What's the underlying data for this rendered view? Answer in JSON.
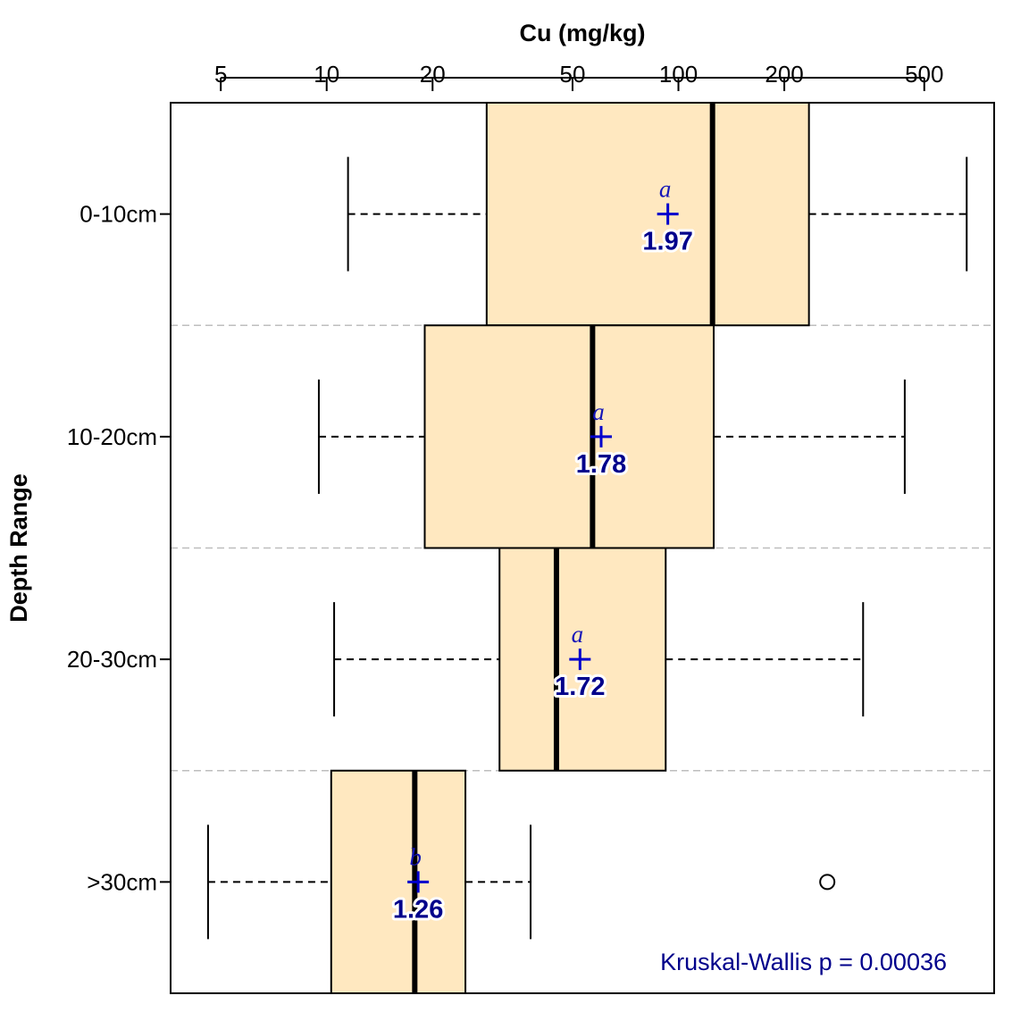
{
  "chart_data": {
    "type": "boxplot",
    "orientation": "horizontal",
    "title": "",
    "xlabel": "Cu (mg/kg)",
    "ylabel": "Depth Range",
    "x_scale": "log",
    "x_axis_position": "top",
    "xlim": [
      3.6,
      790
    ],
    "x_ticks": [
      5,
      10,
      20,
      50,
      100,
      200,
      500
    ],
    "x_tick_labels": [
      "5",
      "10",
      "20",
      "50",
      "100",
      "200",
      "500"
    ],
    "categories": [
      "0-10cm",
      "10-20cm",
      "20-30cm",
      ">30cm"
    ],
    "boxes": [
      {
        "label": "0-10cm",
        "whisker_low": 11.5,
        "q1": 28.5,
        "median": 125,
        "q3": 235,
        "whisker_high": 660,
        "outliers": [],
        "mean": 93.3,
        "mean_label": "1.97",
        "letter": "a"
      },
      {
        "label": "10-20cm",
        "whisker_low": 9.5,
        "q1": 19,
        "median": 57,
        "q3": 126,
        "whisker_high": 440,
        "outliers": [],
        "mean": 60.3,
        "mean_label": "1.78",
        "letter": "a"
      },
      {
        "label": "20-30cm",
        "whisker_low": 10.5,
        "q1": 31,
        "median": 45,
        "q3": 92,
        "whisker_high": 335,
        "outliers": [],
        "mean": 52.5,
        "mean_label": "1.72",
        "letter": "a"
      },
      {
        "label": ">30cm",
        "whisker_low": 4.6,
        "q1": 10.3,
        "median": 17.8,
        "q3": 24.8,
        "whisker_high": 38,
        "outliers": [
          265
        ],
        "mean": 18.2,
        "mean_label": "1.26",
        "letter": "b"
      }
    ],
    "box_color": "#ffe8c0",
    "median_color": "#000000",
    "mean_marker_color": "#0000cd",
    "mean_label_color": "#00008b",
    "separator_color": "#bebebe",
    "annotation": "Kruskal-Wallis p = 0.00036",
    "legend": "none",
    "grid": false
  }
}
